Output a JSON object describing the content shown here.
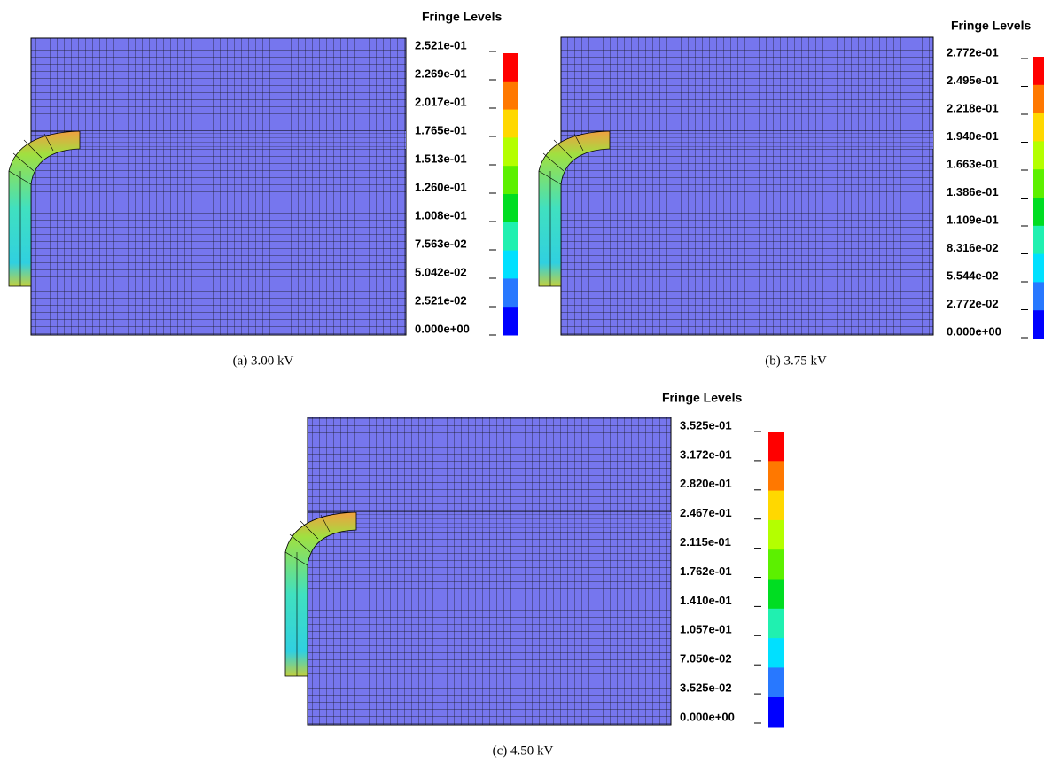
{
  "panels": [
    {
      "title": "Fringe Levels",
      "levels": [
        "2.521e-01",
        "2.269e-01",
        "2.017e-01",
        "1.765e-01",
        "1.513e-01",
        "1.260e-01",
        "1.008e-01",
        "7.563e-02",
        "5.042e-02",
        "2.521e-02",
        "0.000e+00"
      ],
      "caption": "(a) 3.00 kV"
    },
    {
      "title": "Fringe Levels",
      "levels": [
        "2.772e-01",
        "2.495e-01",
        "2.218e-01",
        "1.940e-01",
        "1.663e-01",
        "1.386e-01",
        "1.109e-01",
        "8.316e-02",
        "5.544e-02",
        "2.772e-02",
        "0.000e+00"
      ],
      "caption": "(b) 3.75 kV"
    },
    {
      "title": "Fringe Levels",
      "levels": [
        "3.525e-01",
        "3.172e-01",
        "2.820e-01",
        "2.467e-01",
        "2.115e-01",
        "1.762e-01",
        "1.410e-01",
        "1.057e-01",
        "7.050e-02",
        "3.525e-02",
        "0.000e+00"
      ],
      "caption": "(c) 4.50 kV"
    }
  ]
}
